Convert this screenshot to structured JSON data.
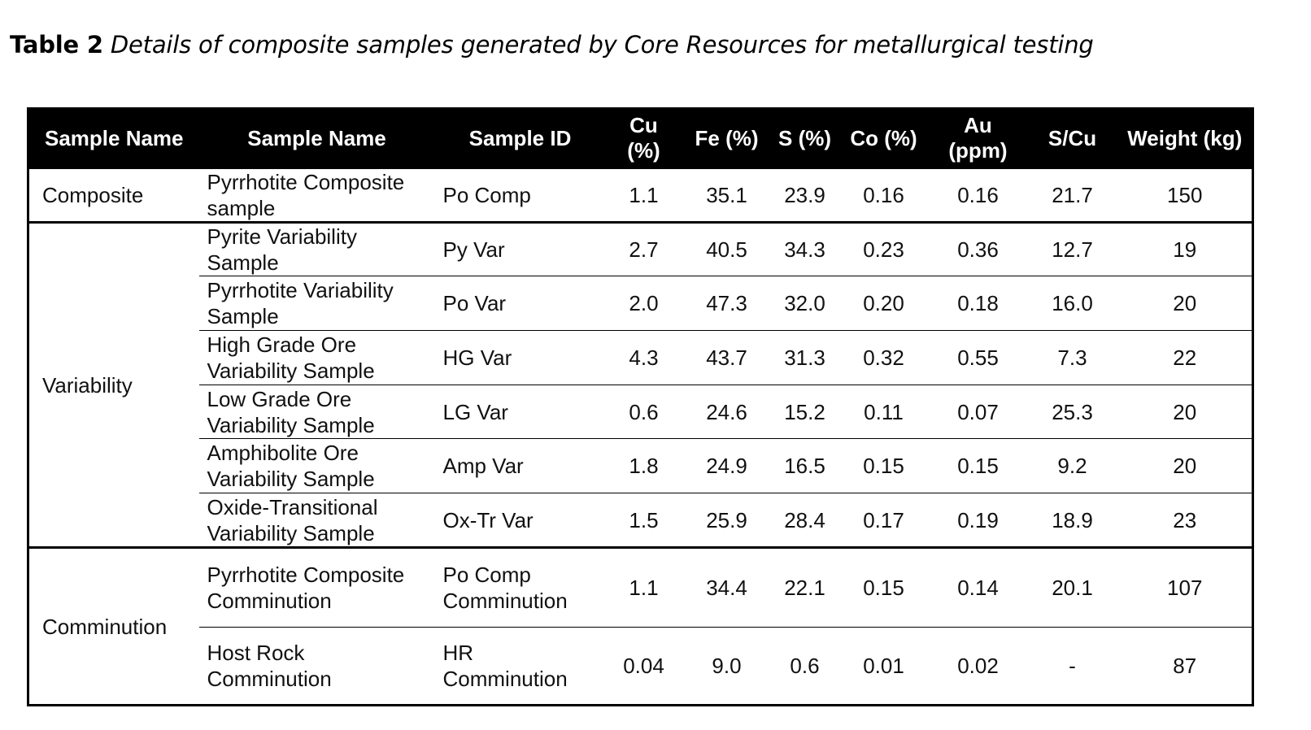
{
  "caption": {
    "label": "Table 2",
    "text": "Details of composite samples generated by Core Resources for metallurgical testing"
  },
  "table": {
    "headers": [
      "Sample Name",
      "Sample Name",
      "Sample ID",
      "Cu (%)",
      "Fe (%)",
      "S (%)",
      "Co (%)",
      "Au (ppm)",
      "S/Cu",
      "Weight (kg)"
    ],
    "groups": [
      {
        "label": "Composite",
        "rows": [
          {
            "name": "Pyrrhotite Composite sample",
            "id": "Po Comp",
            "cu": "1.1",
            "fe": "35.1",
            "s": "23.9",
            "co": "0.16",
            "au": "0.16",
            "scu": "21.7",
            "weight": "150"
          }
        ]
      },
      {
        "label": "Variability",
        "rows": [
          {
            "name": "Pyrite Variability Sample",
            "id": "Py Var",
            "cu": "2.7",
            "fe": "40.5",
            "s": "34.3",
            "co": "0.23",
            "au": "0.36",
            "scu": "12.7",
            "weight": "19"
          },
          {
            "name": "Pyrrhotite Variability Sample",
            "id": "Po Var",
            "cu": "2.0",
            "fe": "47.3",
            "s": "32.0",
            "co": "0.20",
            "au": "0.18",
            "scu": "16.0",
            "weight": "20"
          },
          {
            "name": "High Grade Ore Variability Sample",
            "id": "HG Var",
            "cu": "4.3",
            "fe": "43.7",
            "s": "31.3",
            "co": "0.32",
            "au": "0.55",
            "scu": "7.3",
            "weight": "22"
          },
          {
            "name": "Low Grade Ore Variability Sample",
            "id": "LG Var",
            "cu": "0.6",
            "fe": "24.6",
            "s": "15.2",
            "co": "0.11",
            "au": "0.07",
            "scu": "25.3",
            "weight": "20"
          },
          {
            "name": "Amphibolite Ore Variability Sample",
            "id": "Amp Var",
            "cu": "1.8",
            "fe": "24.9",
            "s": "16.5",
            "co": "0.15",
            "au": "0.15",
            "scu": "9.2",
            "weight": "20"
          },
          {
            "name": "Oxide-Transitional Variability Sample",
            "id": "Ox-Tr Var",
            "cu": "1.5",
            "fe": "25.9",
            "s": "28.4",
            "co": "0.17",
            "au": "0.19",
            "scu": "18.9",
            "weight": "23"
          }
        ]
      },
      {
        "label": "Comminution",
        "rows": [
          {
            "name": "Pyrrhotite Composite Comminution",
            "id": "Po Comp Comminution",
            "cu": "1.1",
            "fe": "34.4",
            "s": "22.1",
            "co": "0.15",
            "au": "0.14",
            "scu": "20.1",
            "weight": "107"
          },
          {
            "name": "Host Rock Comminution",
            "id": "HR Comminution",
            "cu": "0.04",
            "fe": "9.0",
            "s": "0.6",
            "co": "0.01",
            "au": "0.02",
            "scu": "-",
            "weight": "87"
          }
        ]
      }
    ]
  }
}
